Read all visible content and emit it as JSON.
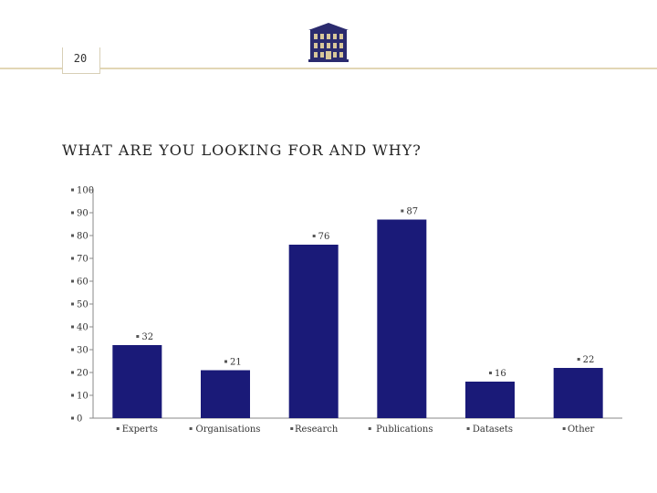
{
  "header": {
    "page_number": "20",
    "title": "WHAT ARE YOU LOOKING FOR AND WHY?"
  },
  "colors": {
    "bar": "#1a1a78",
    "accent_line": "#e2d6b5",
    "logo": "#2b2b6e"
  },
  "chart_data": {
    "type": "bar",
    "title": "",
    "xlabel": "",
    "ylabel": "",
    "categories": [
      "Experts",
      "Organisations",
      "Research",
      "Publications",
      "Datasets",
      "Other"
    ],
    "values": [
      32,
      21,
      76,
      87,
      16,
      22
    ],
    "data_labels": [
      "32",
      "21",
      "76",
      "87",
      "16",
      "22"
    ],
    "ylim": [
      0,
      100
    ],
    "yticks": [
      0,
      10,
      20,
      30,
      40,
      50,
      60,
      70,
      80,
      90,
      100
    ],
    "grid": false,
    "legend": "none"
  }
}
